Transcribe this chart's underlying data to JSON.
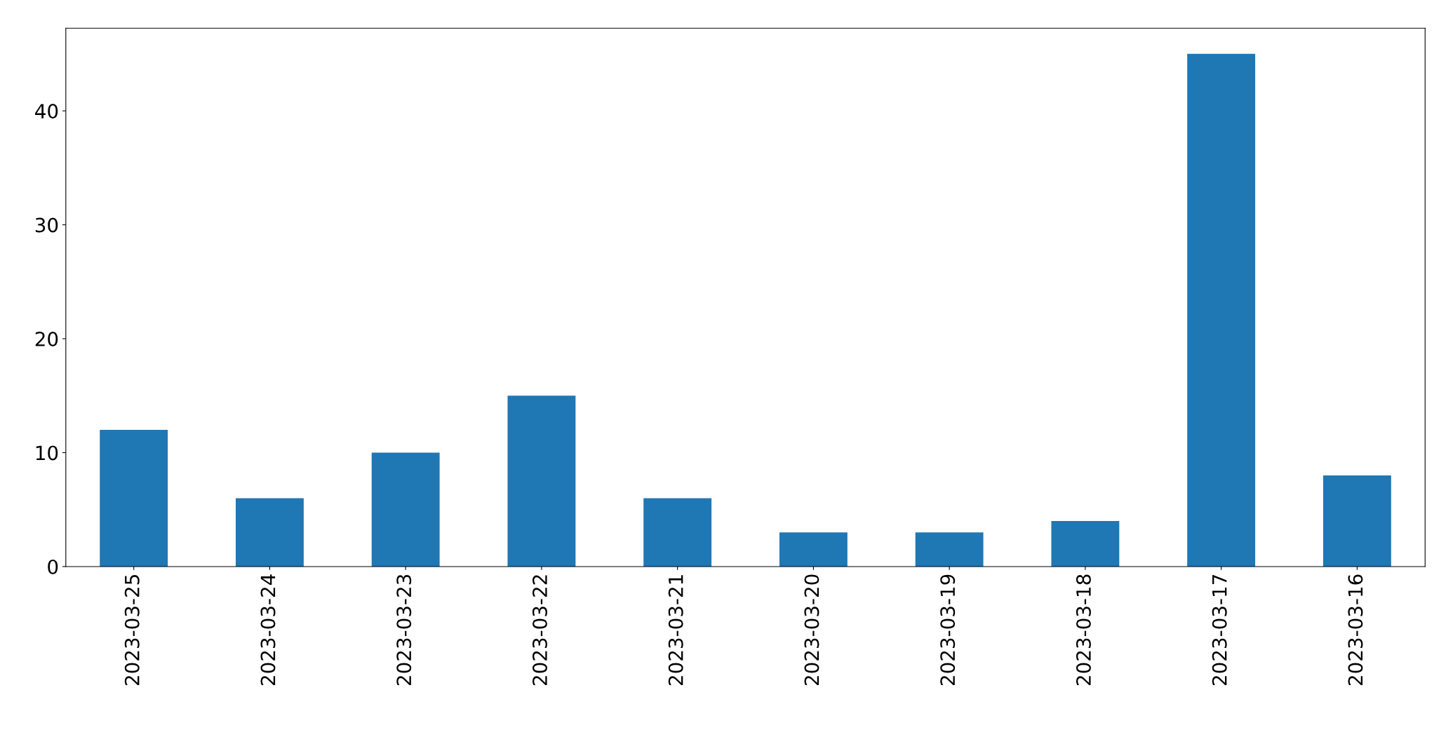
{
  "chart_data": {
    "type": "bar",
    "categories": [
      "2023-03-25",
      "2023-03-24",
      "2023-03-23",
      "2023-03-22",
      "2023-03-21",
      "2023-03-20",
      "2023-03-19",
      "2023-03-18",
      "2023-03-17",
      "2023-03-16"
    ],
    "values": [
      12,
      6,
      10,
      15,
      6,
      3,
      3,
      4,
      45,
      8
    ],
    "color": "#1f77b4",
    "ylim": [
      0,
      47.25
    ],
    "yticks": [
      0,
      10,
      20,
      30,
      40
    ],
    "grid": false,
    "legend": false
  }
}
